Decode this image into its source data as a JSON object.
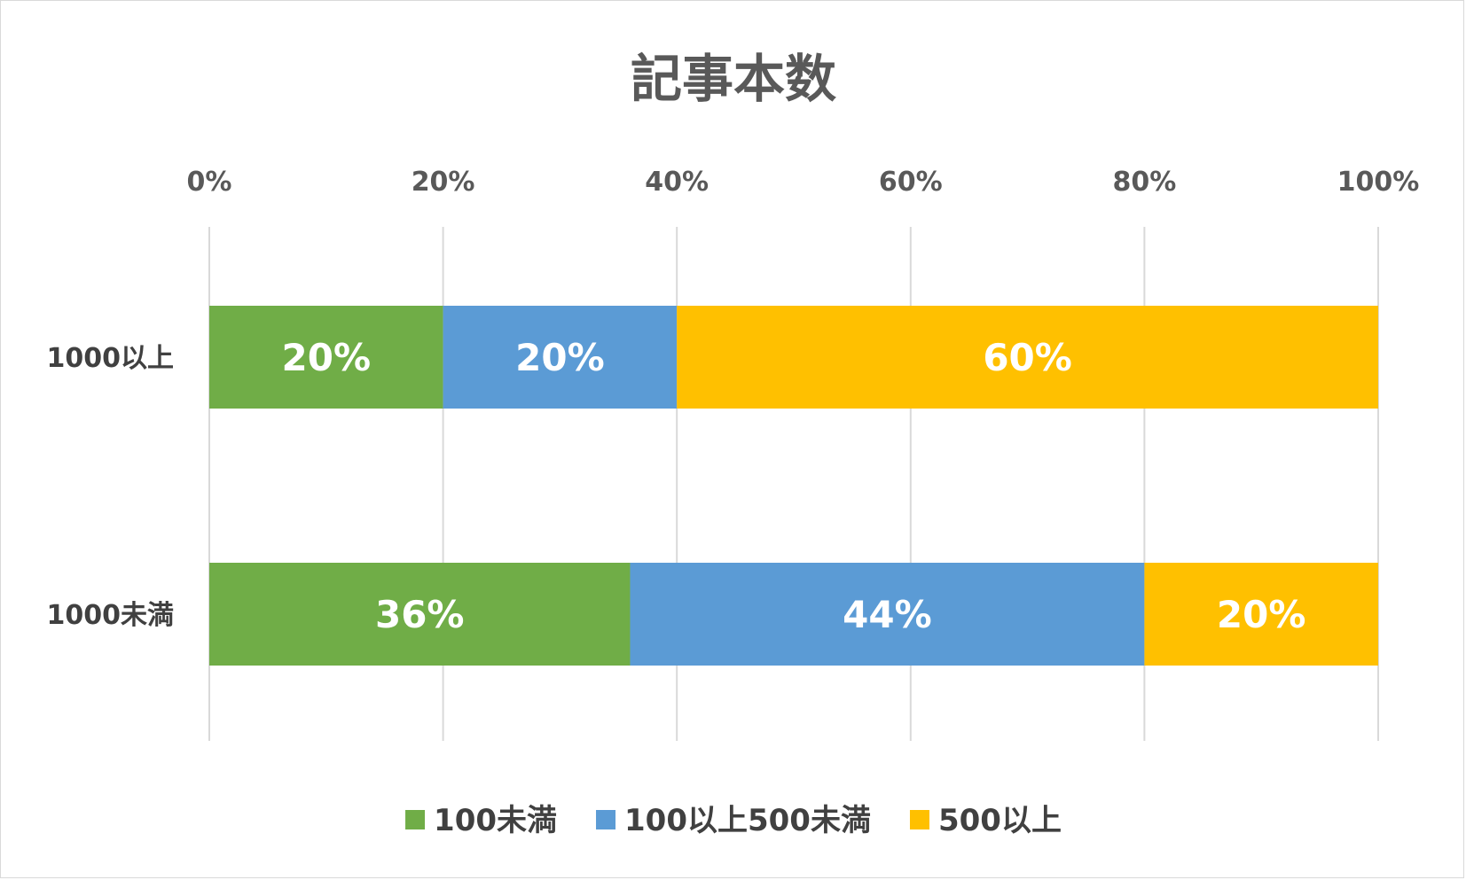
{
  "chart_data": {
    "type": "bar",
    "orientation": "horizontal",
    "stacked": "percent",
    "title": "記事本数",
    "xlim": [
      0,
      100
    ],
    "x_ticks": [
      "0%",
      "20%",
      "40%",
      "60%",
      "80%",
      "100%"
    ],
    "x_tick_values": [
      0,
      20,
      40,
      60,
      80,
      100
    ],
    "x_axis_position": "top",
    "grid": true,
    "legend_position": "bottom",
    "categories": [
      "1000以上",
      "1000未満"
    ],
    "series": [
      {
        "name": "100未満",
        "color": "#70ad47",
        "values": [
          20,
          36
        ],
        "labels": [
          "20%",
          "36%"
        ]
      },
      {
        "name": "100以上500未満",
        "color": "#5b9bd5",
        "values": [
          20,
          44
        ],
        "labels": [
          "20%",
          "44%"
        ]
      },
      {
        "name": "500以上",
        "color": "#ffc000",
        "values": [
          60,
          20
        ],
        "labels": [
          "60%",
          "20%"
        ]
      }
    ]
  }
}
